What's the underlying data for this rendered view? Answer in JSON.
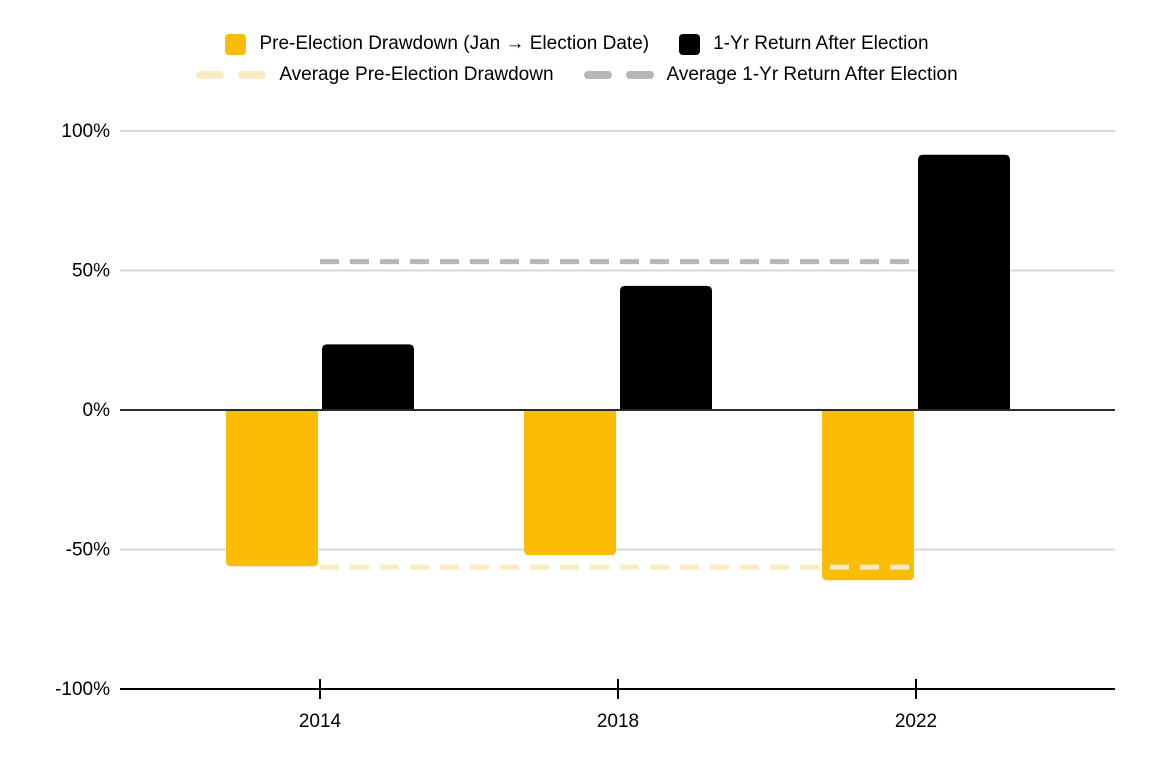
{
  "chart_data": {
    "type": "bar",
    "title": "",
    "categories": [
      "2014",
      "2018",
      "2022"
    ],
    "series": [
      {
        "name": "Pre-Election Drawdown (Jan → Election Date)",
        "kind": "bar",
        "color": "#FBBC04",
        "values": [
          -56,
          -52,
          -61
        ]
      },
      {
        "name": "1-Yr Return After Election",
        "kind": "bar",
        "color": "#000000",
        "values": [
          23.5,
          44.5,
          91.5
        ]
      },
      {
        "name": "Average Pre-Election Drawdown",
        "kind": "dashed-line",
        "color": "#FAEBC3",
        "value": -56.3
      },
      {
        "name": "Average 1-Yr Return After Election",
        "kind": "dashed-line",
        "color": "#B7B7B7",
        "value": 53.2
      }
    ],
    "ylim": [
      -100,
      100
    ],
    "yticks": [
      {
        "label": "100%",
        "value": 100
      },
      {
        "label": "50%",
        "value": 50
      },
      {
        "label": "0%",
        "value": 0
      },
      {
        "label": "-50%",
        "value": -50
      },
      {
        "label": "-100%",
        "value": -100
      }
    ],
    "grid": true,
    "legend_position": "top",
    "colors": {
      "background": "#FFFFFF",
      "gridline": "#D8D8D8",
      "zero_axis": "#2B2B2B",
      "bottom_axis": "#000000",
      "text": "#000000"
    }
  }
}
